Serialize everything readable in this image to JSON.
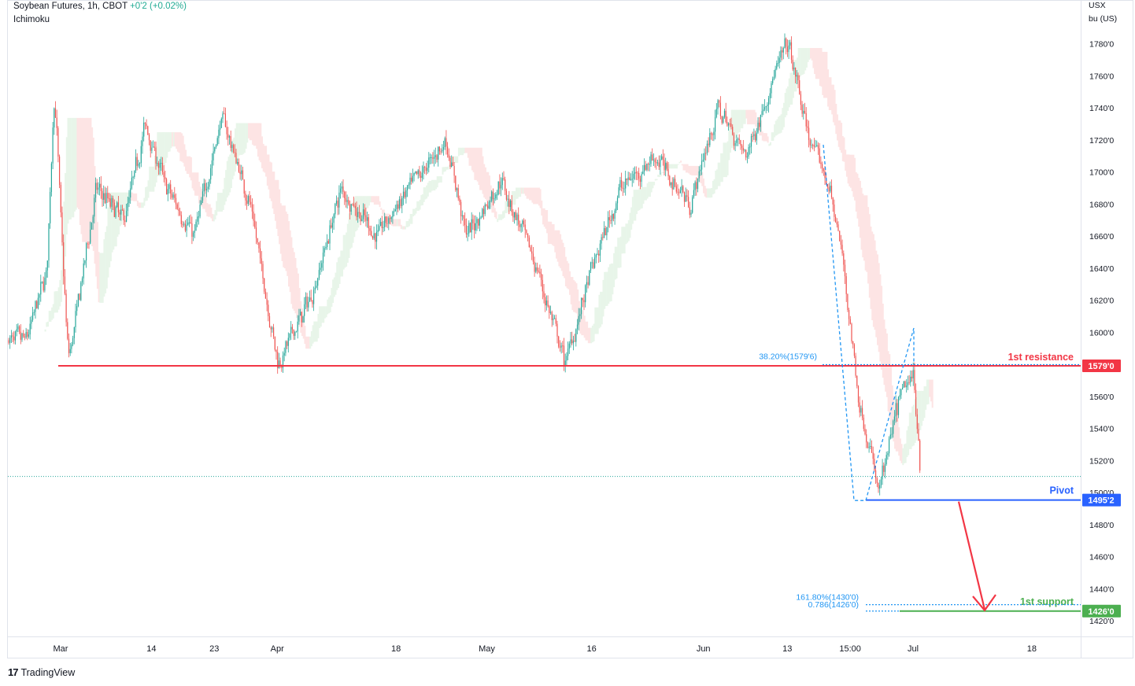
{
  "header": {
    "symbol": "Soybean Futures, 1h, CBOT",
    "change": "+0'2 (+0.02%)",
    "indicator": "Ichimoku"
  },
  "axis_unit": {
    "currency": "USX",
    "unit": "bu (US)"
  },
  "brand": {
    "logo": "17",
    "name": "TradingView"
  },
  "colors": {
    "resistance": "#f23645",
    "pivot": "#2962ff",
    "support": "#4caf50",
    "fib": "#2196f3",
    "candle_up": "#26a69a",
    "candle_down": "#ef5350",
    "cloud_bull": "#e8f5e9",
    "cloud_bear": "#fde4e4"
  },
  "chart_data": {
    "type": "candlestick",
    "title": "Soybean Futures, 1h, CBOT",
    "ylabel": "USX / bu (US)",
    "ylim": [
      1414,
      1790
    ],
    "y_ticks": [
      "1780'0",
      "1760'0",
      "1740'0",
      "1720'0",
      "1700'0",
      "1680'0",
      "1660'0",
      "1640'0",
      "1620'0",
      "1600'0",
      "1580'0",
      "1560'0",
      "1540'0",
      "1520'0",
      "1500'0",
      "1480'0",
      "1460'0",
      "1440'0",
      "1420'0"
    ],
    "x_ticks": [
      "Mar",
      "14",
      "23",
      "Apr",
      "18",
      "May",
      "16",
      "Jun",
      "13",
      "15:00",
      "Jul",
      "18"
    ],
    "price_path": [
      [
        "Feb-24",
        1595
      ],
      [
        "Feb-27",
        1640
      ],
      [
        "Feb-28",
        1760
      ],
      [
        "Mar-01",
        1660
      ],
      [
        "Mar-02",
        1580
      ],
      [
        "Mar-06",
        1690
      ],
      [
        "Mar-10",
        1670
      ],
      [
        "Mar-13",
        1730
      ],
      [
        "Mar-16",
        1690
      ],
      [
        "Mar-20",
        1660
      ],
      [
        "Mar-24",
        1735
      ],
      [
        "Mar-28",
        1680
      ],
      [
        "Apr-01",
        1580
      ],
      [
        "Apr-06",
        1625
      ],
      [
        "Apr-10",
        1690
      ],
      [
        "Apr-15",
        1660
      ],
      [
        "Apr-20",
        1690
      ],
      [
        "Apr-25",
        1720
      ],
      [
        "Apr-28",
        1660
      ],
      [
        "May-03",
        1695
      ],
      [
        "May-08",
        1640
      ],
      [
        "May-12",
        1580
      ],
      [
        "May-16",
        1640
      ],
      [
        "May-20",
        1690
      ],
      [
        "May-25",
        1710
      ],
      [
        "May-30",
        1680
      ],
      [
        "Jun-03",
        1740
      ],
      [
        "Jun-07",
        1710
      ],
      [
        "Jun-11",
        1760
      ],
      [
        "Jun-13",
        1780
      ],
      [
        "Jun-16",
        1720
      ],
      [
        "Jun-19",
        1690
      ],
      [
        "Jun-21",
        1640
      ],
      [
        "Jun-23",
        1560
      ],
      [
        "Jun-26",
        1500
      ],
      [
        "Jun-29",
        1560
      ],
      [
        "Jul-01",
        1575
      ],
      [
        "Jul-02",
        1510
      ]
    ],
    "levels": [
      {
        "label": "1st resistance",
        "value": 1579.0,
        "tag": "1579'0"
      },
      {
        "label": "Pivot",
        "value": 1495.25,
        "tag": "1495'2"
      },
      {
        "label": "1st support",
        "value": 1426.0,
        "tag": "1426'0"
      }
    ],
    "fibonacci": [
      {
        "label": "38.20%(1579'6)",
        "value": 1579.75
      },
      {
        "label": "161.80%(1430'0)",
        "value": 1430.0
      },
      {
        "label": "0.786(1426'0)",
        "value": 1426.0
      }
    ],
    "last_price": 1510
  }
}
